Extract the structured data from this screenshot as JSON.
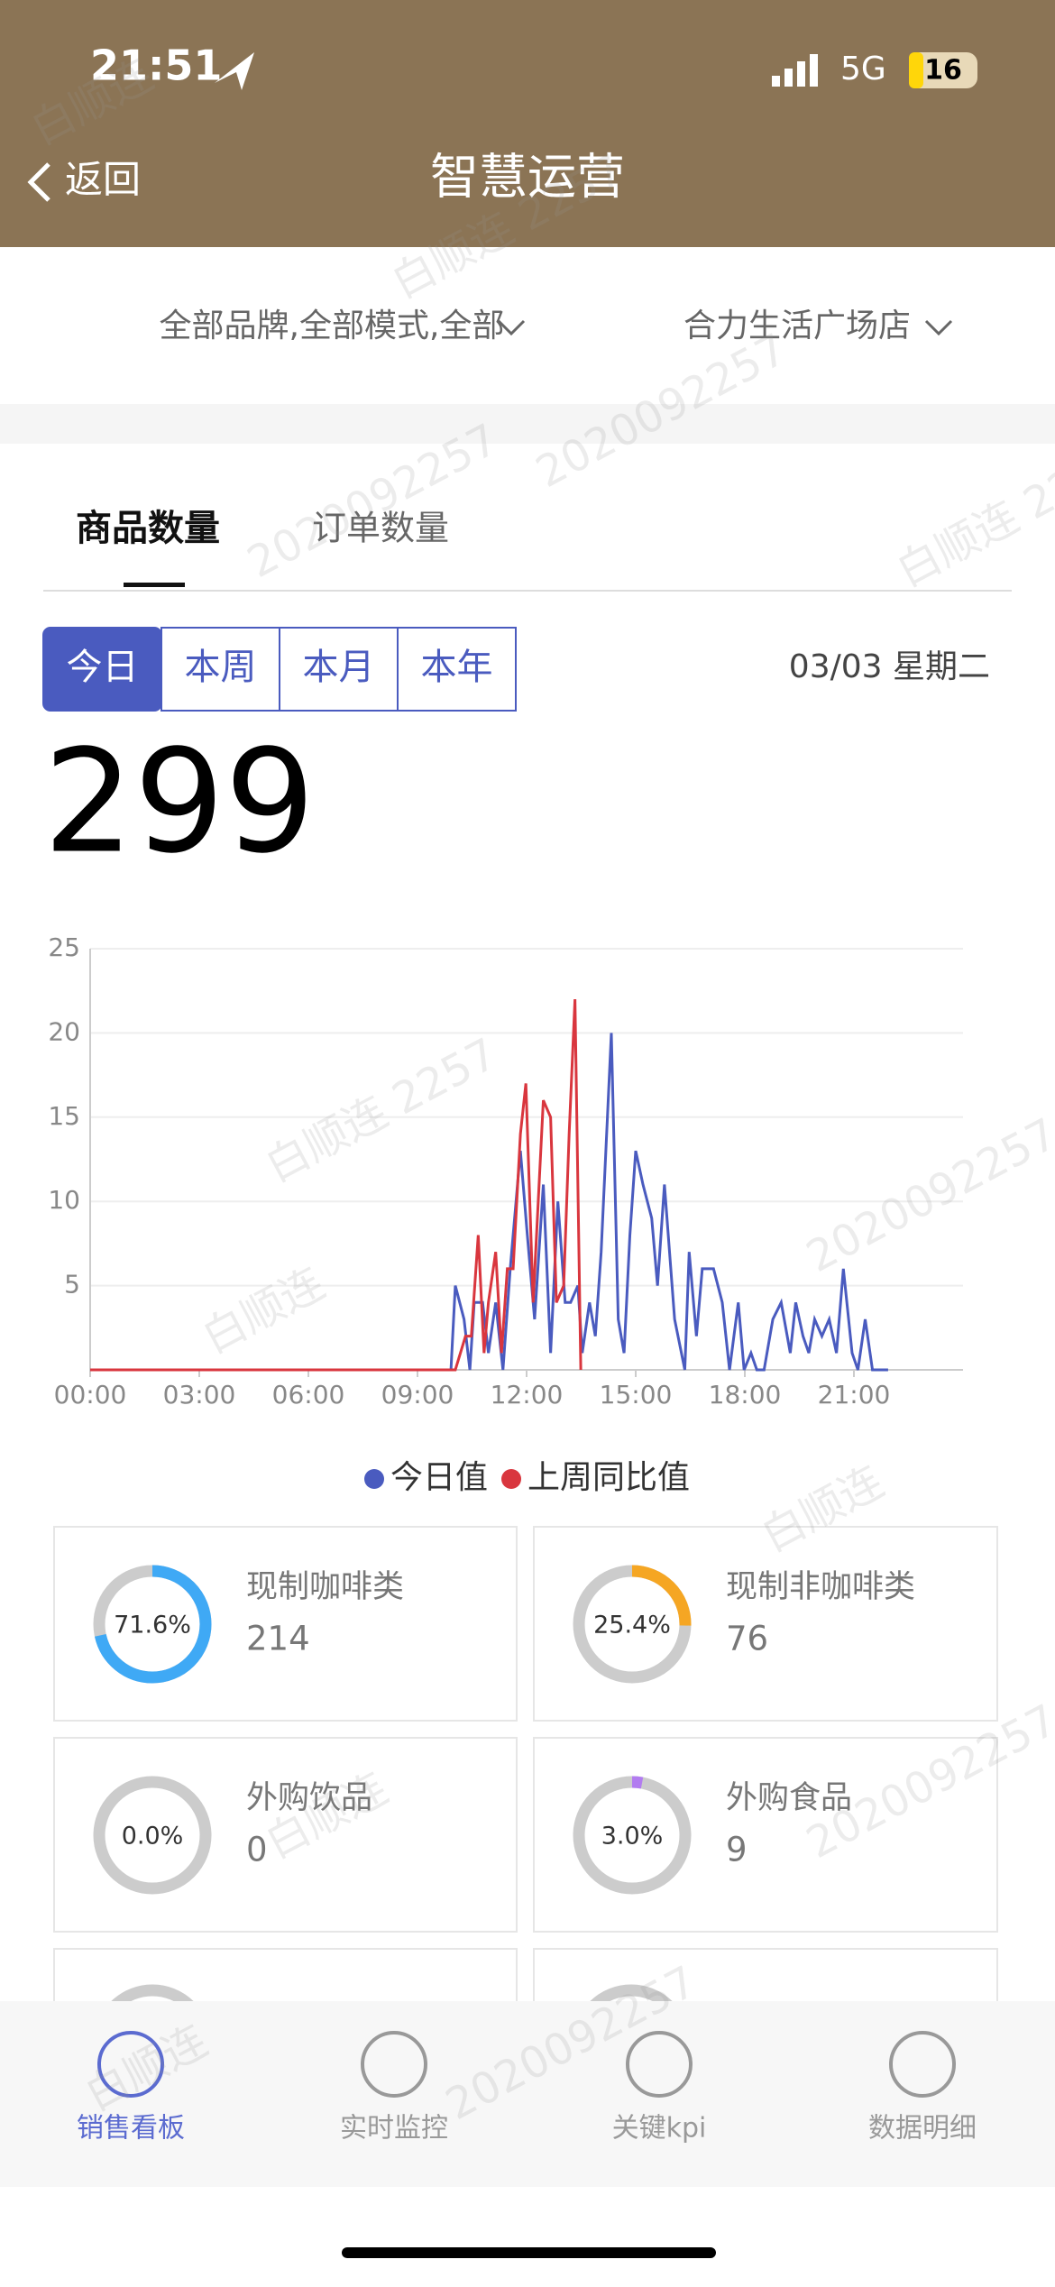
{
  "status_bar": {
    "time": "21:51",
    "network": "5G",
    "battery": "16"
  },
  "header": {
    "back": "返回",
    "title": "智慧运营"
  },
  "filters": {
    "brand": "全部品牌,全部模式,全部",
    "store": "合力生活广场店"
  },
  "tabs": [
    "商品数量",
    "订单数量"
  ],
  "periods": [
    "今日",
    "本周",
    "本月",
    "本年"
  ],
  "date": "03/03 星期二",
  "summary": {
    "total": 299
  },
  "chart_data": {
    "type": "line",
    "xlim": [
      0,
      24
    ],
    "ylim": [
      0,
      25
    ],
    "yticks": [
      5,
      10,
      15,
      20,
      25
    ],
    "xticks": [
      {
        "value": 0,
        "label": "00:00"
      },
      {
        "value": 3,
        "label": "03:00"
      },
      {
        "value": 6,
        "label": "06:00"
      },
      {
        "value": 9,
        "label": "09:00"
      },
      {
        "value": 12,
        "label": "12:00"
      },
      {
        "value": 15,
        "label": "15:00"
      },
      {
        "value": 18,
        "label": "18:00"
      },
      {
        "value": 21,
        "label": "21:00"
      }
    ],
    "grid": true,
    "series": [
      {
        "name": "今日值",
        "color": "#4a5bbf",
        "x": [
          0,
          9.92,
          10.04,
          10.28,
          10.44,
          10.56,
          10.79,
          10.95,
          11.15,
          11.35,
          11.55,
          11.83,
          12.02,
          12.22,
          12.46,
          12.66,
          12.86,
          13.06,
          13.21,
          13.41,
          13.53,
          13.73,
          13.89,
          14.05,
          14.33,
          14.52,
          14.68,
          14.84,
          15.0,
          15.2,
          15.44,
          15.6,
          15.79,
          16.07,
          16.35,
          16.47,
          16.67,
          16.83,
          17.14,
          17.38,
          17.58,
          17.82,
          17.98,
          18.17,
          18.33,
          18.53,
          18.77,
          19.0,
          19.25,
          19.4,
          19.6,
          19.76,
          19.92,
          20.12,
          20.32,
          20.52,
          20.71,
          20.95,
          21.11,
          21.31,
          21.51,
          21.94
        ],
        "values": [
          0,
          0,
          5,
          3,
          0,
          4,
          4,
          1,
          4,
          0,
          6,
          13,
          8,
          3,
          11,
          1,
          10,
          4,
          4,
          5,
          1,
          4,
          2,
          7,
          20,
          3,
          1,
          8,
          13,
          11,
          9,
          5,
          11,
          3,
          0,
          7,
          2,
          6,
          6,
          4,
          0,
          4,
          0,
          1,
          0,
          0,
          3,
          4,
          1,
          4,
          2,
          1,
          3,
          2,
          3,
          1,
          6,
          1,
          0,
          3,
          0,
          0
        ]
      },
      {
        "name": "上周同比值",
        "color": "#d9363e",
        "x": [
          0,
          10.04,
          10.32,
          10.48,
          10.67,
          10.83,
          10.95,
          11.15,
          11.31,
          11.47,
          11.63,
          11.83,
          11.98,
          12.18,
          12.46,
          12.66,
          12.82,
          13.02,
          13.17,
          13.33,
          13.49
        ],
        "values": [
          0,
          0,
          2,
          2,
          8,
          1,
          4,
          7,
          1,
          6,
          6,
          14,
          17,
          4,
          16,
          15,
          4,
          5,
          14,
          22,
          0
        ]
      }
    ]
  },
  "categories": [
    {
      "name": "现制咖啡类",
      "percent": {
        "value": 71.6,
        "label": "71.6%"
      },
      "count": 214,
      "color": "#3fa9f5"
    },
    {
      "name": "现制非咖啡类",
      "percent": {
        "value": 25.4,
        "label": "25.4%"
      },
      "count": 76,
      "color": "#f5a623"
    },
    {
      "name": "外购饮品",
      "percent": {
        "value": 0.0,
        "label": "0.0%"
      },
      "count": 0,
      "color": "#3fa9f5"
    },
    {
      "name": "外购食品",
      "percent": {
        "value": 3.0,
        "label": "3.0%"
      },
      "count": 9,
      "color": "#b27cf0"
    }
  ],
  "nav": [
    "销售看板",
    "实时监控",
    "关键kpi",
    "数据明细"
  ],
  "watermark": [
    "白顺连",
    "2020092257",
    "白顺连 2257"
  ]
}
